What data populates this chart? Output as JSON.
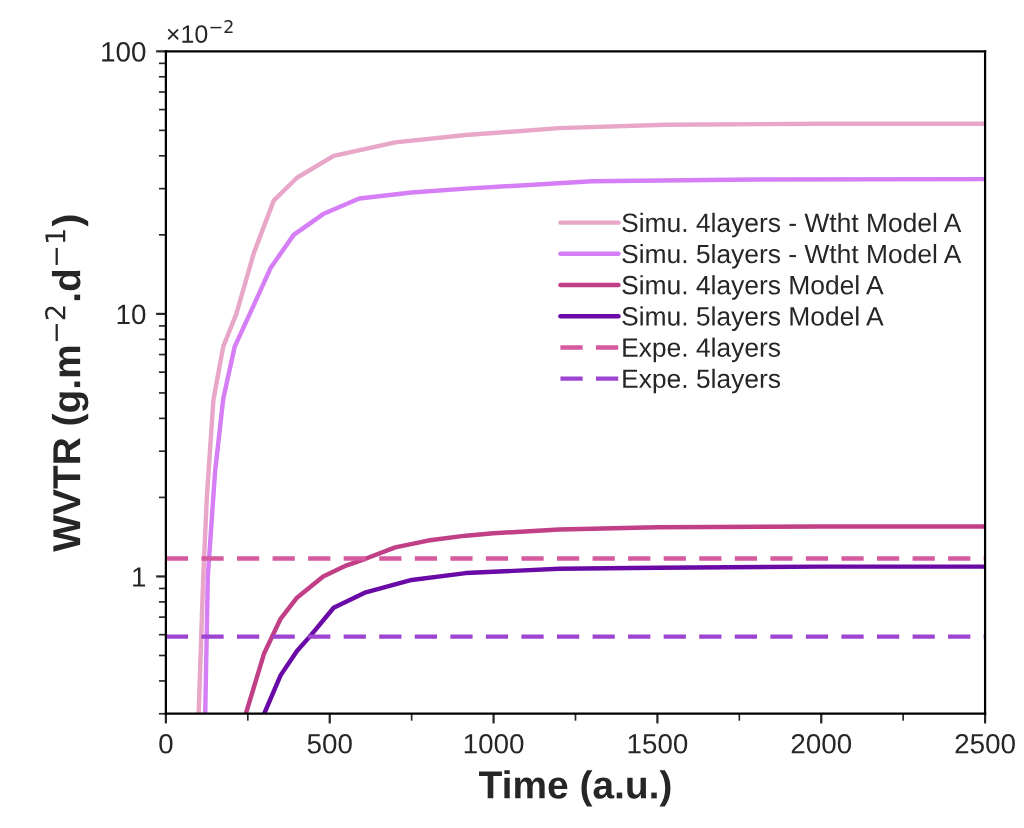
{
  "chart_data": {
    "type": "line",
    "xlabel": "Time (a.u.)",
    "ylabel": "WVTR (g.m$^{−2}$.d$^{−1}$)",
    "annotations": [
      "×10$^{−2}$"
    ],
    "log": "y",
    "xlim": [
      0,
      2500
    ],
    "xticks": [
      0,
      500,
      1000,
      1500,
      2000,
      2500
    ],
    "ylim": [
      0.3,
      100
    ],
    "yticks": [
      1,
      10,
      100
    ],
    "grid": false,
    "legend": "right",
    "marker": "none",
    "series": [
      {
        "name": "Simu. 4layers - Wtht Model A",
        "color": "#e8a6c8",
        "line_style": "solid",
        "x": [
          100,
          114,
          125,
          145,
          175,
          215,
          268,
          329,
          400,
          512,
          700,
          915,
          1200,
          1524,
          2000,
          2500
        ],
        "values": [
          0.3,
          1,
          2,
          4.7,
          7.5,
          10,
          17,
          27,
          33,
          40,
          45,
          48,
          51,
          52.5,
          53,
          53
        ]
      },
      {
        "name": "Simu. 5layers - Wtht Model A",
        "color": "#d67ef5",
        "line_style": "solid",
        "x": [
          120,
          128,
          150,
          175,
          210,
          256,
          320,
          390,
          480,
          590,
          750,
          915,
          1300,
          1800,
          2500
        ],
        "values": [
          0.3,
          1,
          2.5,
          4.75,
          7.5,
          10,
          15,
          20,
          24,
          27.5,
          29,
          30,
          32,
          32.5,
          32.6
        ]
      },
      {
        "name": "Simu. 4layers Model A",
        "color": "#c03f86",
        "line_style": "solid",
        "x": [
          244,
          300,
          350,
          400,
          480,
          550,
          611,
          700,
          800,
          915,
          1000,
          1200,
          1500,
          2000,
          2500
        ],
        "values": [
          0.3,
          0.51,
          0.69,
          0.83,
          1,
          1.1,
          1.17,
          1.29,
          1.37,
          1.43,
          1.46,
          1.51,
          1.54,
          1.55,
          1.55
        ]
      },
      {
        "name": "Simu. 5layers Model A",
        "color": "#6a0aa6",
        "line_style": "solid",
        "x": [
          300,
          350,
          400,
          439,
          512,
          610,
          750,
          915,
          1200,
          1500,
          2000,
          2500
        ],
        "values": [
          0.3,
          0.42,
          0.52,
          0.59,
          0.76,
          0.87,
          0.97,
          1.03,
          1.07,
          1.08,
          1.09,
          1.09
        ]
      },
      {
        "name": "Expe. 4layers",
        "color": "#d65aa0",
        "line_style": "dashed",
        "x": [
          0,
          2500
        ],
        "values": [
          1.17,
          1.17
        ]
      },
      {
        "name": "Expe. 5layers",
        "color": "#9d45d0",
        "line_style": "dashed",
        "x": [
          0,
          2500
        ],
        "values": [
          0.59,
          0.59
        ]
      }
    ]
  }
}
